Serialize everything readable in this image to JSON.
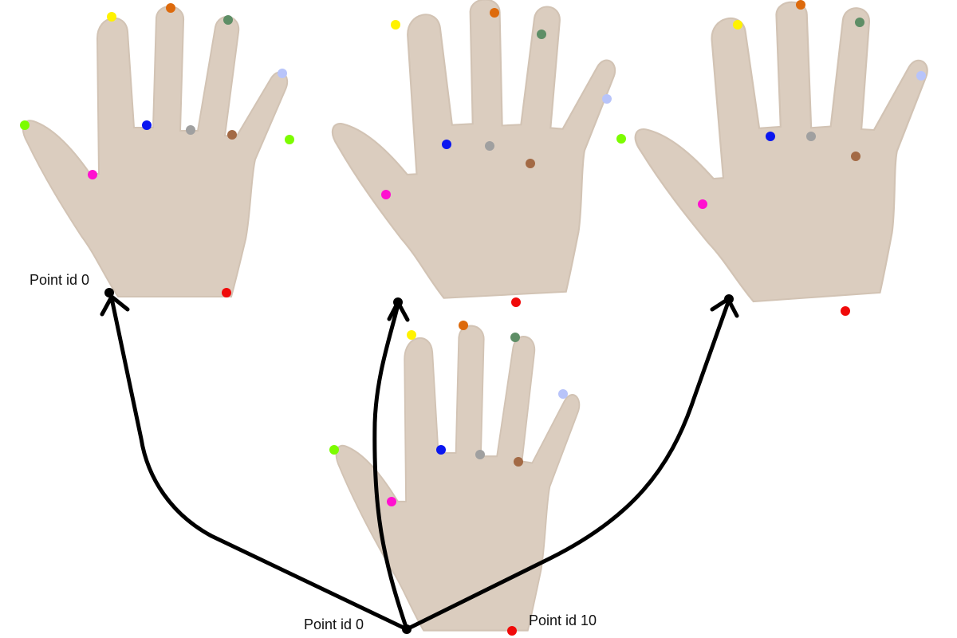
{
  "labels": {
    "top_left_point": "Point id 0",
    "bottom_point_0": "Point id 0",
    "bottom_point_10": "Point id 10"
  },
  "colors": {
    "skin": "#DBCDBF",
    "skin_edge": "#D2C3B4",
    "arrow": "#000000",
    "keypoints": {
      "lime": "#7CFC00",
      "magenta": "#FF10D0",
      "yellow": "#FFF200",
      "blue": "#0A16F0",
      "orange": "#DD6A0C",
      "gray": "#A0A0A0",
      "green": "#5E8E66",
      "brown": "#A36A45",
      "lavender": "#B8C4FA",
      "red": "#F00A0A",
      "black": "#000000"
    }
  }
}
